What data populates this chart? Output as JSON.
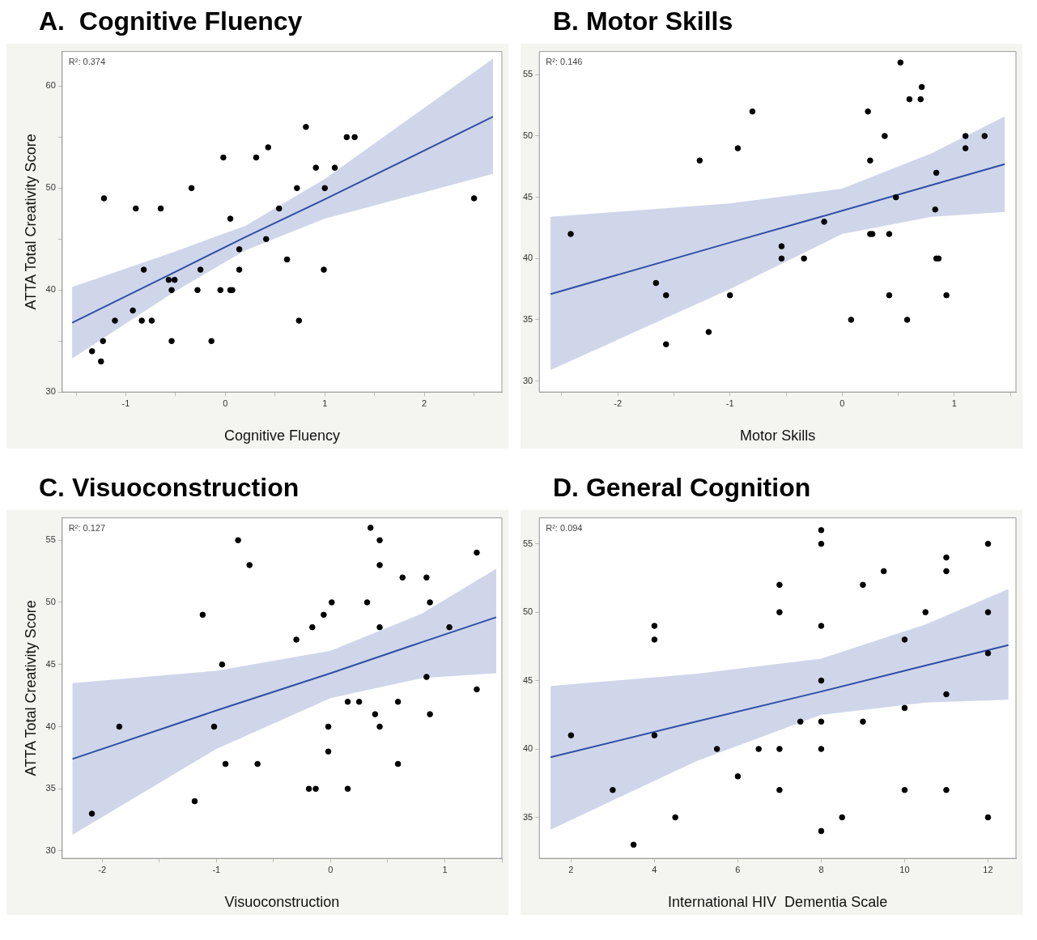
{
  "chart_data": [
    {
      "type": "scatter",
      "title": "A.  Cognitive Fluency",
      "xlabel": "Cognitive Fluency",
      "ylabel": "ATTA Total Creativity Score",
      "annotations": [
        "R²: 0.374"
      ],
      "xlim": [
        -1.64,
        2.78
      ],
      "xticks": [
        {
          "value": -1.5,
          "label": null
        },
        -1,
        {
          "value": -0.5,
          "label": null
        },
        0,
        {
          "value": 0.5,
          "label": null
        },
        1,
        {
          "value": 1.5,
          "label": null
        },
        2,
        {
          "value": 2.5,
          "label": null
        }
      ],
      "ylim": [
        30,
        63.4
      ],
      "yticks": [
        30,
        {
          "value": 35,
          "label": null
        },
        40,
        {
          "value": 45,
          "label": null
        },
        50,
        {
          "value": 55,
          "label": null
        },
        60
      ],
      "series": [
        {
          "color": "#000000",
          "marker": "circle",
          "x": [
            -1.34,
            -1.25,
            -1.23,
            -1.22,
            -1.11,
            -0.93,
            -0.9,
            -0.84,
            -0.82,
            -0.74,
            -0.65,
            -0.57,
            -0.54,
            -0.54,
            -0.51,
            -0.34,
            -0.28,
            -0.25,
            -0.14,
            -0.05,
            -0.02,
            0.05,
            0.05,
            0.07,
            0.14,
            0.14,
            0.31,
            0.41,
            0.43,
            0.54,
            0.62,
            0.72,
            0.74,
            0.81,
            0.91,
            0.99,
            1.0,
            1.1,
            1.22,
            1.3,
            2.5
          ],
          "values": [
            34,
            33,
            35,
            49,
            37,
            38,
            48,
            37,
            42,
            37,
            48,
            41,
            40,
            35,
            41,
            50,
            40,
            42,
            35,
            40,
            53,
            47,
            40,
            40,
            44,
            42,
            53,
            45,
            54,
            48,
            43,
            50,
            37,
            56,
            52,
            42,
            50,
            52,
            55,
            55,
            49
          ]
        },
        {
          "type": "line",
          "color": "#2f4fa6",
          "marker": "none",
          "x": [
            -1.54,
            -0.5,
            0.2,
            1,
            2.69
          ],
          "values": [
            36.8,
            41.8,
            45.2,
            48.9,
            57.0
          ],
          "lower": [
            33.3,
            39.9,
            43.9,
            47.0,
            51.4
          ],
          "upper": [
            40.3,
            43.8,
            46.3,
            50.9,
            62.7
          ]
        }
      ]
    },
    {
      "type": "scatter",
      "title": "B. Motor Skills",
      "xlabel": "Motor Skills",
      "annotations": [
        "R²: 0.146"
      ],
      "xlim": [
        -2.7,
        1.55
      ],
      "xticks": [
        {
          "value": -2.5,
          "label": null
        },
        -2,
        {
          "value": -1.5,
          "label": null
        },
        -1,
        {
          "value": -0.5,
          "label": null
        },
        0,
        {
          "value": 0.5,
          "label": null
        },
        1,
        {
          "value": 1.5,
          "label": null
        }
      ],
      "ylim": [
        29.1,
        56.9
      ],
      "yticks": [
        30,
        35,
        40,
        45,
        50,
        55
      ],
      "series": [
        {
          "color": "#000000",
          "marker": "circle",
          "x": [
            -2.42,
            -1.66,
            -1.57,
            -1.57,
            -1.27,
            -1.19,
            -1.0,
            -0.93,
            -0.8,
            -0.54,
            -0.54,
            -0.34,
            -0.16,
            0.08,
            0.23,
            0.25,
            0.25,
            0.27,
            0.38,
            0.42,
            0.42,
            0.48,
            0.52,
            0.58,
            0.6,
            0.7,
            0.71,
            0.83,
            0.84,
            0.84,
            0.86,
            0.93,
            1.1,
            1.1,
            1.27
          ],
          "values": [
            42,
            38,
            37,
            33,
            48,
            34,
            37,
            49,
            52,
            41,
            40,
            40,
            43,
            35,
            52,
            48,
            42,
            42,
            50,
            42,
            37,
            45,
            56,
            35,
            53,
            53,
            54,
            44,
            47,
            40,
            40,
            37,
            50,
            49,
            50
          ]
        },
        {
          "type": "line",
          "color": "#2f4fa6",
          "marker": "none",
          "x": [
            -2.6,
            -1,
            0,
            0.8,
            1.45
          ],
          "values": [
            37.1,
            41.3,
            43.9,
            46.0,
            47.7
          ],
          "lower": [
            30.9,
            37.5,
            42.0,
            43.4,
            43.8
          ],
          "upper": [
            43.4,
            44.5,
            45.7,
            48.6,
            51.6
          ]
        }
      ]
    },
    {
      "type": "scatter",
      "title": "C. Visuoconstruction",
      "xlabel": "Visuoconstruction",
      "ylabel": "ATTA Total Creativity Score",
      "annotations": [
        "R²: 0.127"
      ],
      "xlim": [
        -2.35,
        1.5
      ],
      "xticks": [
        -2,
        {
          "value": -1.5,
          "label": null
        },
        -1,
        {
          "value": -0.5,
          "label": null
        },
        0,
        {
          "value": 0.5,
          "label": null
        },
        1,
        {
          "value": 1.5,
          "label": null
        }
      ],
      "ylim": [
        29.4,
        56.8
      ],
      "yticks": [
        30,
        35,
        40,
        45,
        50,
        55
      ],
      "series": [
        {
          "color": "#000000",
          "marker": "circle",
          "x": [
            -2.09,
            -1.85,
            -1.19,
            -1.12,
            -1.02,
            -0.95,
            -0.92,
            -0.81,
            -0.71,
            -0.64,
            -0.3,
            -0.19,
            -0.16,
            -0.13,
            -0.06,
            -0.02,
            -0.02,
            0.01,
            0.15,
            0.15,
            0.25,
            0.32,
            0.35,
            0.39,
            0.43,
            0.43,
            0.43,
            0.43,
            0.59,
            0.59,
            0.63,
            0.84,
            0.84,
            0.87,
            0.87,
            1.04,
            1.28,
            1.28
          ],
          "values": [
            33,
            40,
            34,
            49,
            40,
            45,
            37,
            55,
            53,
            37,
            47,
            35,
            48,
            35,
            49,
            40,
            38,
            50,
            42,
            35,
            42,
            50,
            56,
            41,
            55,
            53,
            48,
            40,
            42,
            37,
            52,
            52,
            44,
            50,
            41,
            48,
            54,
            43
          ]
        },
        {
          "type": "line",
          "color": "#2f4fa6",
          "marker": "none",
          "x": [
            -2.26,
            -1,
            0,
            0.8,
            1.45
          ],
          "values": [
            37.4,
            41.3,
            44.3,
            46.8,
            48.8
          ],
          "lower": [
            31.3,
            38.2,
            42.3,
            43.9,
            44.3
          ],
          "upper": [
            43.5,
            44.5,
            46.1,
            49.1,
            52.7
          ]
        }
      ]
    },
    {
      "type": "scatter",
      "title": "D. General Cognition",
      "xlabel": "International HIV  Dementia Scale",
      "annotations": [
        "R²: 0.094"
      ],
      "xlim": [
        1.24,
        12.67
      ],
      "xticks": [
        2,
        4,
        6,
        8,
        10,
        12
      ],
      "ylim": [
        32,
        56.9
      ],
      "yticks": [
        35,
        40,
        45,
        50,
        55
      ],
      "series": [
        {
          "color": "#000000",
          "marker": "circle",
          "x": [
            2,
            3,
            3.5,
            4,
            4,
            4,
            4.5,
            5.5,
            6,
            6.5,
            7,
            7,
            7,
            7,
            7.5,
            8,
            8,
            8,
            8,
            8,
            8,
            8,
            8.5,
            9,
            9,
            9.5,
            10,
            10,
            10,
            10.5,
            11,
            11,
            11,
            11,
            12,
            12,
            12,
            12
          ],
          "values": [
            41,
            37,
            33,
            49,
            48,
            41,
            35,
            40,
            38,
            40,
            52,
            50,
            40,
            37,
            42,
            56,
            55,
            49,
            45,
            42,
            40,
            34,
            35,
            52,
            42,
            53,
            48,
            43,
            37,
            50,
            54,
            53,
            44,
            37,
            55,
            50,
            47,
            35
          ]
        },
        {
          "type": "line",
          "color": "#2f4fa6",
          "marker": "none",
          "x": [
            1.51,
            5,
            8,
            10.5,
            12.49
          ],
          "values": [
            39.4,
            42.0,
            44.2,
            46.1,
            47.6
          ],
          "lower": [
            34.1,
            39.1,
            42.5,
            43.4,
            43.6
          ],
          "upper": [
            44.6,
            45.5,
            46.6,
            49.1,
            51.7
          ]
        }
      ]
    }
  ]
}
